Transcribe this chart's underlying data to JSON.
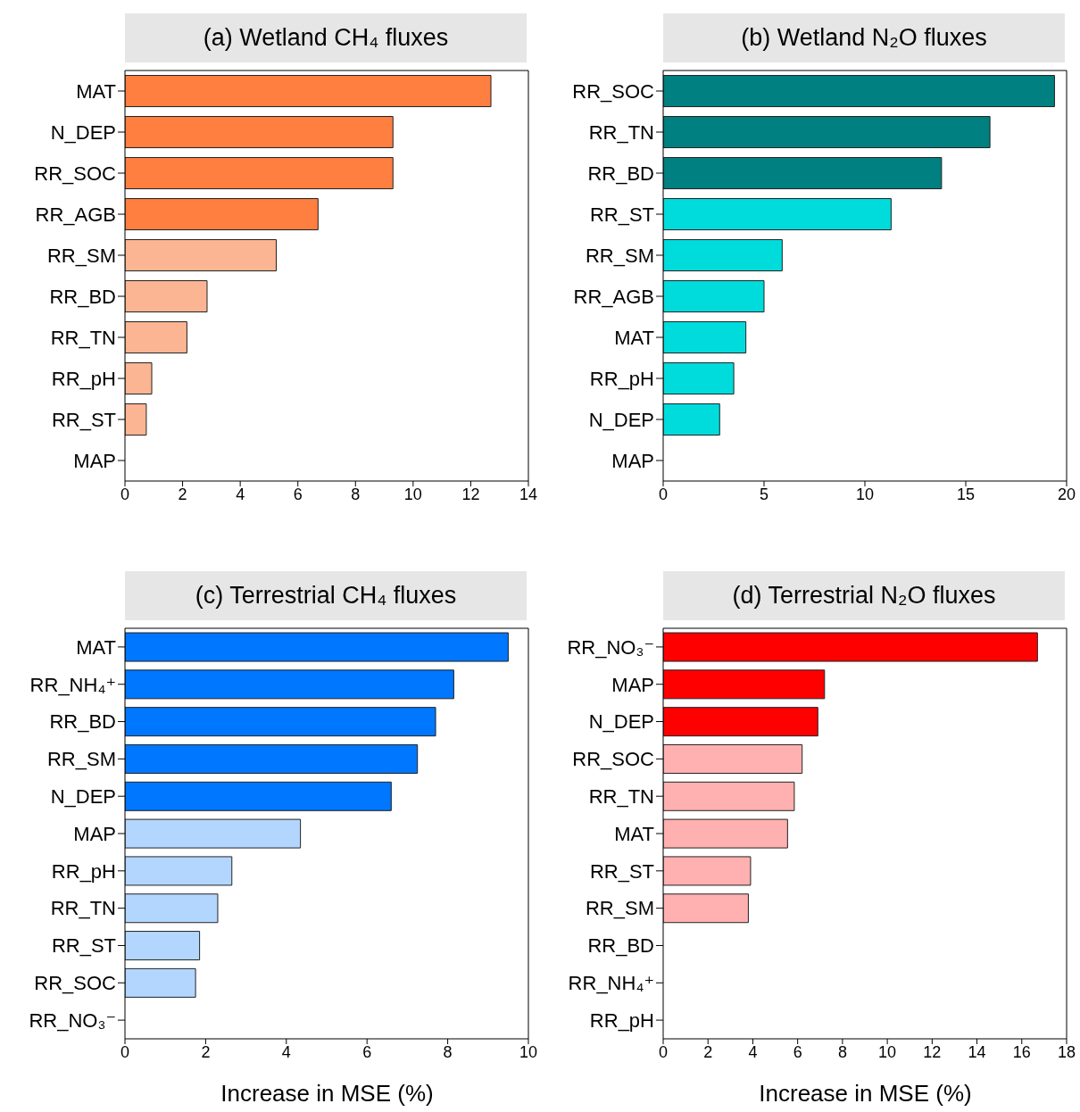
{
  "chart_data": [
    {
      "type": "bar",
      "orientation": "horizontal",
      "title": "(a) Wetland CH₄ fluxes",
      "categories": [
        "MAT",
        "N_DEP",
        "RR_SOC",
        "RR_AGB",
        "RR_SM",
        "RR_BD",
        "RR_TN",
        "RR_pH",
        "RR_ST",
        "MAP"
      ],
      "values": [
        12.7,
        9.3,
        9.3,
        6.7,
        5.25,
        2.85,
        2.15,
        0.93,
        0.74,
        0
      ],
      "colors": [
        "#ff7f41",
        "#ff7f41",
        "#ff7f41",
        "#ff7f41",
        "#fcb593",
        "#fcb593",
        "#fcb593",
        "#fcb593",
        "#fcb593",
        "#fcb593"
      ],
      "xlim": [
        0,
        14
      ],
      "xticks": [
        0,
        2,
        4,
        6,
        8,
        10,
        12,
        14
      ]
    },
    {
      "type": "bar",
      "orientation": "horizontal",
      "title": "(b) Wetland N₂O fluxes",
      "categories": [
        "RR_SOC",
        "RR_TN",
        "RR_BD",
        "RR_ST",
        "RR_SM",
        "RR_AGB",
        "MAT",
        "RR_pH",
        "N_DEP",
        "MAP"
      ],
      "values": [
        19.4,
        16.2,
        13.8,
        11.3,
        5.9,
        5.0,
        4.1,
        3.5,
        2.8,
        0
      ],
      "colors": [
        "#008080",
        "#008080",
        "#008080",
        "#00dcdc",
        "#00dcdc",
        "#00dcdc",
        "#00dcdc",
        "#00dcdc",
        "#00dcdc",
        "#00dcdc"
      ],
      "xlim": [
        0,
        20
      ],
      "xticks": [
        0,
        5,
        10,
        15,
        20
      ]
    },
    {
      "type": "bar",
      "orientation": "horizontal",
      "title": "(c) Terrestrial CH₄ fluxes",
      "xlabel": "Increase in MSE (%)",
      "categories": [
        "MAT",
        "RR_NH₄⁺",
        "RR_BD",
        "RR_SM",
        "N_DEP",
        "MAP",
        "RR_pH",
        "RR_TN",
        "RR_ST",
        "RR_SOC",
        "RR_NO₃⁻"
      ],
      "values": [
        9.5,
        8.15,
        7.7,
        7.25,
        6.6,
        4.35,
        2.65,
        2.3,
        1.85,
        1.75,
        0
      ],
      "colors": [
        "#0077ff",
        "#0077ff",
        "#0077ff",
        "#0077ff",
        "#0077ff",
        "#b3d6ff",
        "#b3d6ff",
        "#b3d6ff",
        "#b3d6ff",
        "#b3d6ff",
        "#b3d6ff"
      ],
      "xlim": [
        0,
        10
      ],
      "xticks": [
        0,
        2,
        4,
        6,
        8,
        10
      ]
    },
    {
      "type": "bar",
      "orientation": "horizontal",
      "title": "(d) Terrestrial N₂O fluxes",
      "xlabel": "Increase in MSE (%)",
      "categories": [
        "RR_NO₃⁻",
        "MAP",
        "N_DEP",
        "RR_SOC",
        "RR_TN",
        "MAT",
        "RR_ST",
        "RR_SM",
        "RR_BD",
        "RR_NH₄⁺",
        "RR_pH"
      ],
      "values": [
        16.7,
        7.2,
        6.9,
        6.2,
        5.85,
        5.55,
        3.9,
        3.8,
        0,
        0,
        0
      ],
      "colors": [
        "#ff0000",
        "#ff0000",
        "#ff0000",
        "#ffb0b0",
        "#ffb0b0",
        "#ffb0b0",
        "#ffb0b0",
        "#ffb0b0",
        "#ffb0b0",
        "#ffb0b0",
        "#ffb0b0"
      ],
      "xlim": [
        0,
        18
      ],
      "xticks": [
        0,
        2,
        4,
        6,
        8,
        10,
        12,
        14,
        16,
        18
      ]
    }
  ]
}
